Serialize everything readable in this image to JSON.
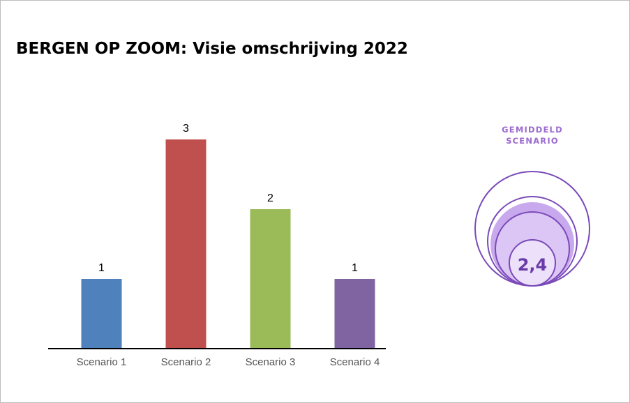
{
  "title": "BERGEN OP ZOOM: Visie omschrijving 2022",
  "chart_data": {
    "type": "bar",
    "title": "",
    "categories": [
      "Scenario 1",
      "Scenario 2",
      "Scenario 3",
      "Scenario 4"
    ],
    "values": [
      1,
      3,
      2,
      1
    ],
    "colors": [
      "#4f81bd",
      "#c0504d",
      "#9bbb59",
      "#8064a2"
    ],
    "ylim": [
      0,
      3
    ],
    "data_labels": true,
    "grid": false
  },
  "summary_badge": {
    "heading_line1": "GEMIDDELD",
    "heading_line2": "SCENARIO",
    "value": "2,4",
    "accent_color": "#6a3aa8",
    "fill_color": "#c9a9ee"
  }
}
